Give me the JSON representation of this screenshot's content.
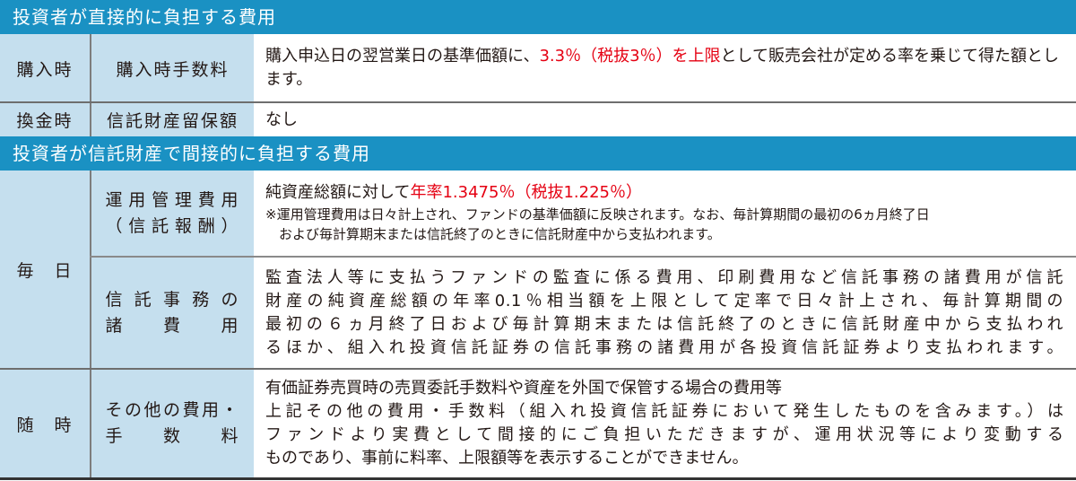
{
  "section1": {
    "title": "投資者が直接的に負担する費用"
  },
  "purchase": {
    "timing": "購入時",
    "item": "購入時手数料",
    "text_a": "購入申込日の翌営業日の基準価額に、",
    "text_red": "3.3％（税抜3％）を上限",
    "text_b": "として販売会社が定める率を乗じて得た額とします。"
  },
  "redemption": {
    "timing": "換金時",
    "item": "信託財産留保額",
    "text": "なし"
  },
  "section2": {
    "title": "投資者が信託財産で間接的に負担する費用"
  },
  "daily": {
    "timing": "毎　日",
    "mgmt": {
      "item_lines": [
        "運用管理費用",
        "（信託報酬）"
      ],
      "text_a": "純資産総額に対して",
      "text_red": "年率1.3475％（税抜1.225％）",
      "note_lines": [
        "※運用管理費用は日々計上され、ファンドの基準価額に反映されます。なお、毎計算期間の最初の6ヵ月終了日",
        "　およびび毎計算期末または信託終了のときに信託財産中から支払われます。"
      ]
    },
    "trust": {
      "item_lines": [
        "信託事務の",
        "諸　費　用"
      ],
      "text_lines": [
        "監査法人等に支払うファンドの監査に係る費用、印刷費用など信託事務の諸費用が信託",
        "財産の純資産総額の年率0.1％相当額を上限として定率で日々計上され、毎計算期間の",
        "最初の６ヵ月終了日および毎計算期末または信託終了のときに信託財産中から支払われ",
        "るほか、組入れ投資信託証券の信託事務の諸費用が各投資信託証券より支払われます。"
      ]
    }
  },
  "anytime": {
    "timing": "随　時",
    "item_lines": [
      "その他の費用・",
      "手　数　料"
    ],
    "text_lines": [
      "有価証券売買時の売買委託手数料や資産を外国で保管する場合の費用等",
      "上記その他の費用・手数料（組入れ投資信託証券において発生したものを含みます。）は",
      "ファンドより実費として間接的にご負担いただきますが、運用状況等により変動する",
      "ものであり、事前に料率、上限額等を表示することができません。"
    ]
  },
  "colors": {
    "header": "#1a91c3",
    "label_bg": "#c5dfee",
    "highlight": "#e50012"
  }
}
